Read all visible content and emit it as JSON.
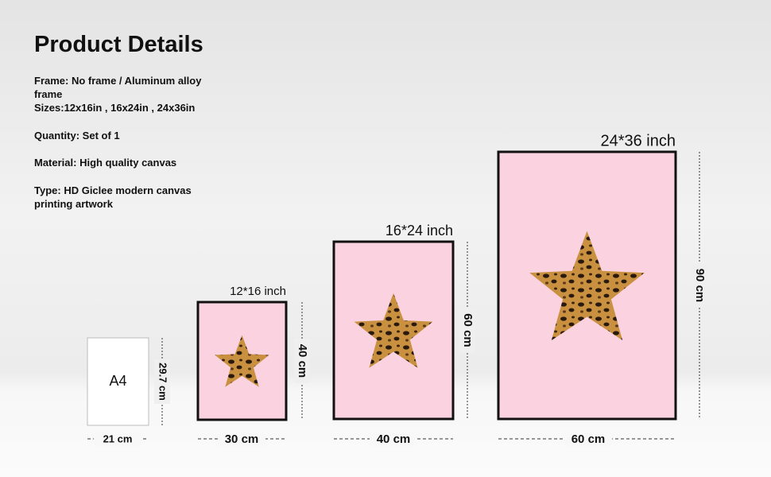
{
  "title": "Product Details",
  "details": [
    "Frame: No frame  / Aluminum alloy frame",
    "Sizes:12x16in , 16x24in , 24x36in",
    "Quantity: Set of 1",
    "Material: High quality canvas",
    "Type: HD Giclee modern canvas printing artwork"
  ],
  "sizes": [
    {
      "label": "A4",
      "width": "21 cm",
      "height": "29.7 cm"
    },
    {
      "label": "12*16 inch",
      "width": "30 cm",
      "height": "40 cm"
    },
    {
      "label": "16*24 inch",
      "width": "40 cm",
      "height": "60 cm"
    },
    {
      "label": "24*36 inch",
      "width": "60 cm",
      "height": "90 cm"
    }
  ]
}
